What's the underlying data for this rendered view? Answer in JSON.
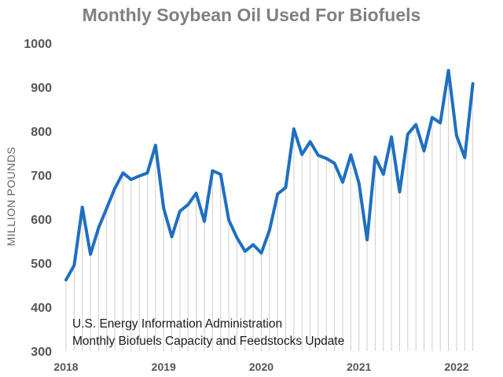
{
  "chart_data": {
    "type": "line",
    "title": "Monthly Soybean Oil Used For Biofuels",
    "ylabel": "MILLION POUNDS",
    "xlabel": "",
    "ylim": [
      300,
      1000
    ],
    "yticks": [
      300,
      400,
      500,
      600,
      700,
      800,
      900,
      1000
    ],
    "xticks": [
      "2018",
      "2019",
      "2020",
      "2021",
      "2022"
    ],
    "grid": "vertical",
    "annotation": [
      "U.S. Energy Information Administration",
      "Monthly Biofuels Capacity and Feedstocks Update"
    ],
    "colors": {
      "line": "#1f6fc1",
      "grid": "#cfcfcf",
      "title": "#808080"
    },
    "series": [
      {
        "x": [
          "2018-01",
          "2018-02",
          "2018-03",
          "2018-04",
          "2018-05",
          "2018-06",
          "2018-07",
          "2018-08",
          "2018-09",
          "2018-10",
          "2018-11",
          "2018-12",
          "2019-01",
          "2019-02",
          "2019-03",
          "2019-04",
          "2019-05",
          "2019-06",
          "2019-07",
          "2019-08",
          "2019-09",
          "2019-10",
          "2019-11",
          "2019-12",
          "2020-01",
          "2020-02",
          "2020-03",
          "2020-04",
          "2020-05",
          "2020-06",
          "2020-07",
          "2020-08",
          "2020-09",
          "2020-10",
          "2020-11",
          "2020-12",
          "2021-01",
          "2021-02",
          "2021-03",
          "2021-04",
          "2021-05",
          "2021-06",
          "2021-07",
          "2021-08",
          "2021-09",
          "2021-10",
          "2021-11",
          "2021-12",
          "2022-01",
          "2022-02",
          "2022-03"
        ],
        "values": [
          462,
          495,
          627,
          520,
          580,
          625,
          670,
          705,
          690,
          698,
          705,
          768,
          625,
          560,
          618,
          633,
          659,
          595,
          710,
          702,
          598,
          558,
          527,
          542,
          523,
          574,
          657,
          672,
          805,
          747,
          776,
          745,
          738,
          727,
          684,
          746,
          682,
          553,
          741,
          702,
          787,
          662,
          793,
          815,
          755,
          831,
          819,
          938,
          790,
          740,
          908
        ]
      }
    ]
  }
}
